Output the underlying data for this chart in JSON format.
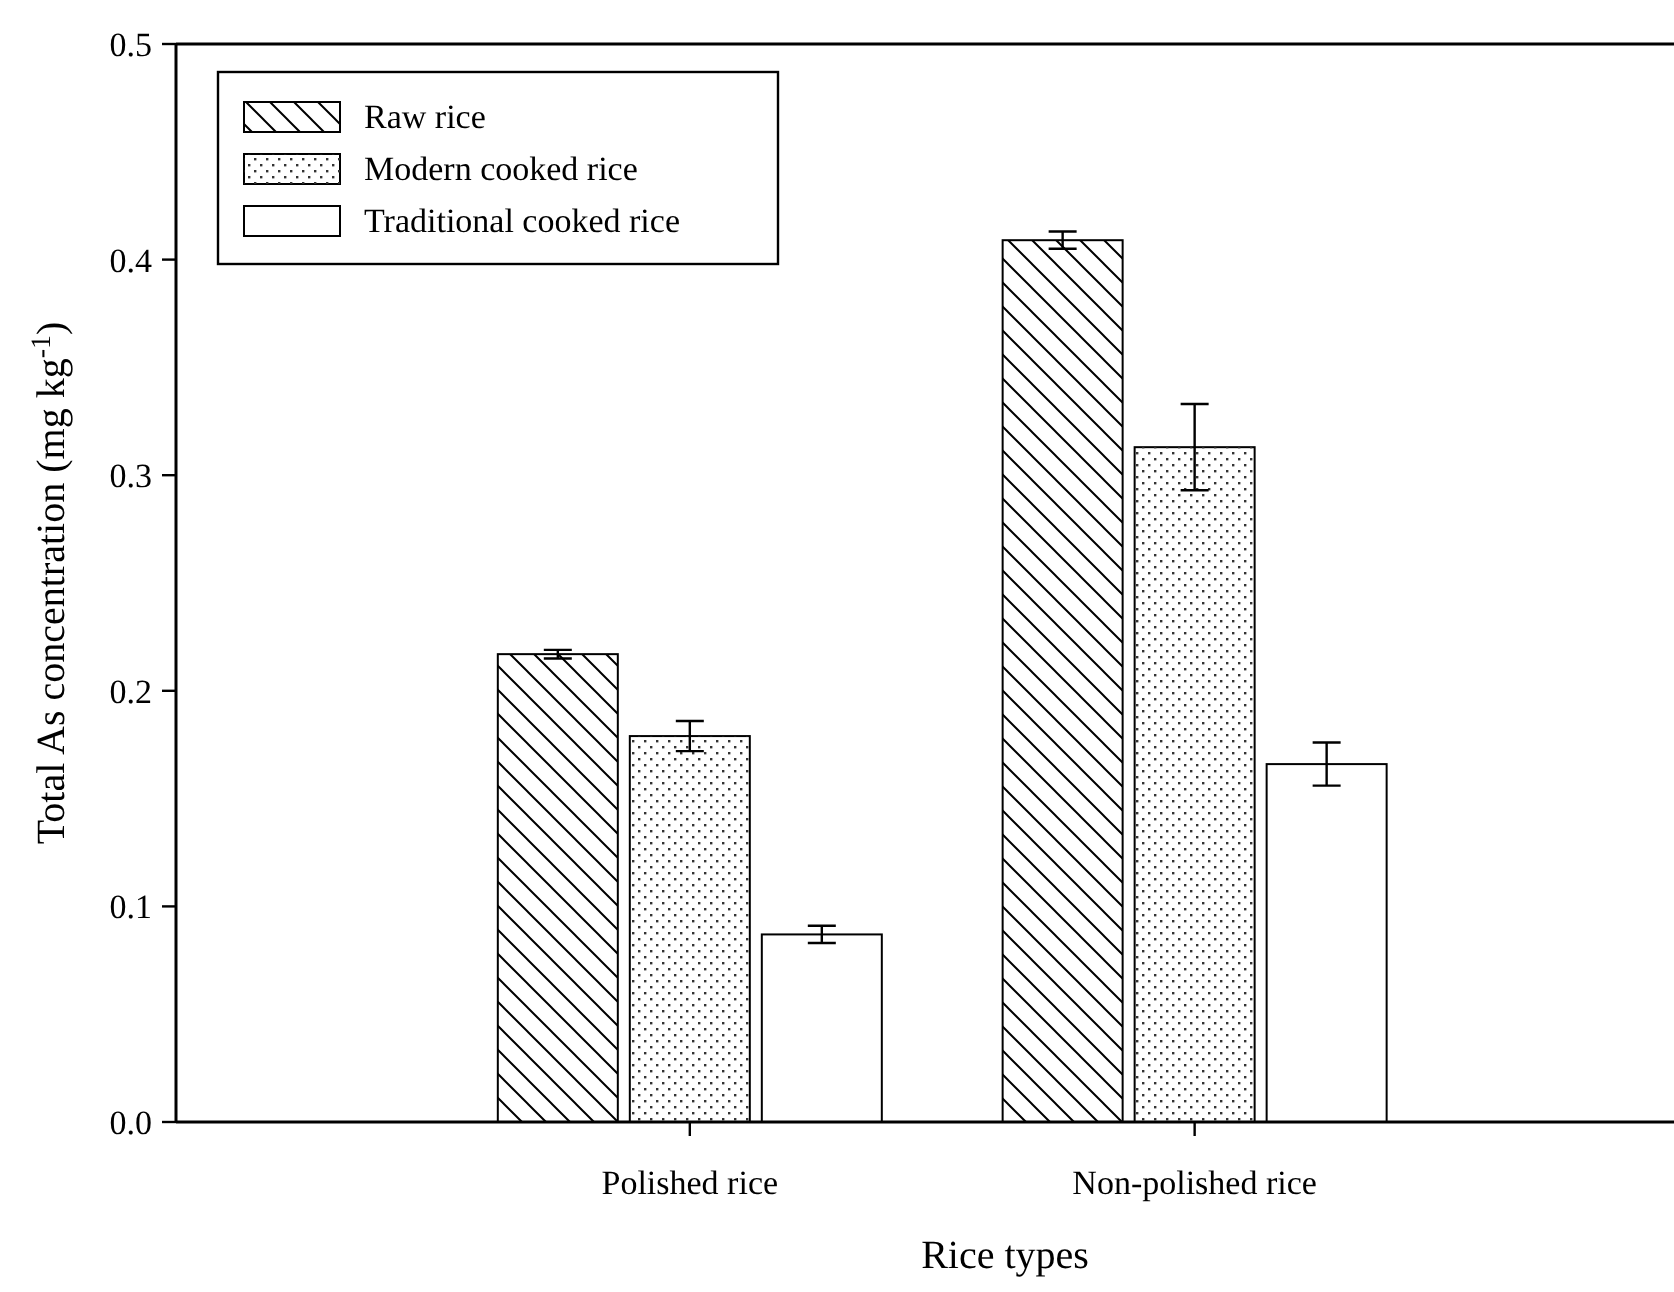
{
  "chart_data": {
    "type": "bar",
    "xlabel": "Rice types",
    "ylabel": "Total As concentration (mg kg$^{-1}$)",
    "categories": [
      "Polished rice",
      "Non-polished rice"
    ],
    "series": [
      {
        "name": "Raw rice",
        "color": "#ffffff",
        "values": [
          0.217,
          0.409
        ],
        "errors": [
          0.002,
          0.004
        ]
      },
      {
        "name": "Modern cooked rice",
        "color": "#ffffff",
        "values": [
          0.179,
          0.313
        ],
        "errors": [
          0.007,
          0.02
        ]
      },
      {
        "name": "Traditional cooked rice",
        "color": "#ffffff",
        "values": [
          0.087,
          0.166
        ],
        "errors": [
          0.004,
          0.01
        ]
      }
    ],
    "ylim": [
      0,
      0.5
    ],
    "yticks": [
      {
        "value": 0,
        "label": "0.0"
      },
      0.1,
      0.2,
      0.3,
      0.4,
      0.5
    ],
    "grid": false,
    "legend": "top left"
  }
}
